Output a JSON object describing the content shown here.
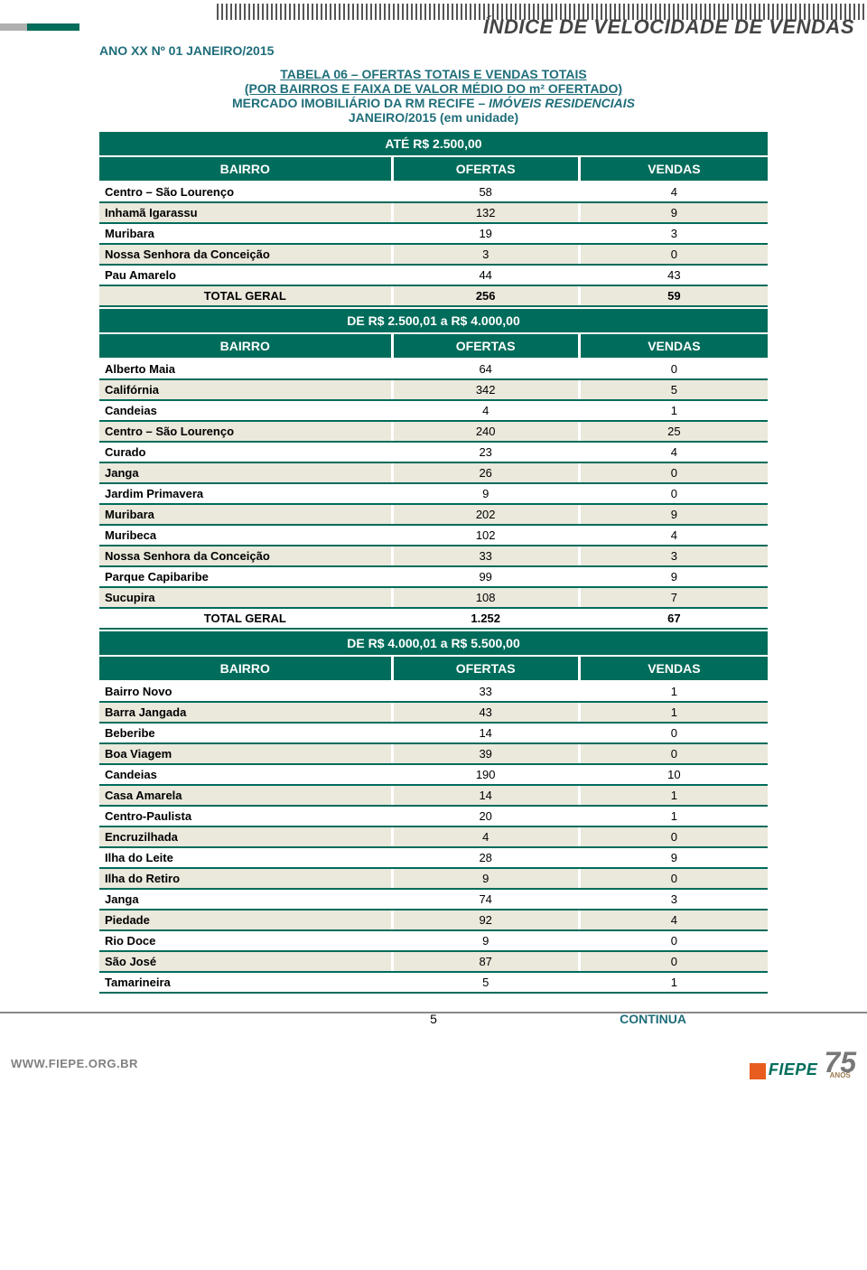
{
  "colors": {
    "teal": "#006c5b",
    "label": "#1f6e7a",
    "row_alt": "#ebe8dc",
    "border": "#006c5b",
    "gray": "#808080",
    "orange": "#e85c1f"
  },
  "header": {
    "index_title": "ÍNDICE DE VELOCIDADE DE VENDAS",
    "page_label": "ANO XX Nº 01 JANEIRO/2015"
  },
  "title_block": {
    "line1": "TABELA 06 – OFERTAS TOTAIS E VENDAS TOTAIS",
    "line2": "(POR BAIRROS E FAIXA DE VALOR MÉDIO DO m² OFERTADO)",
    "line3_a": "MERCADO IMOBILIÁRIO DA RM RECIFE – ",
    "line3_b": "IMÓVEIS RESIDENCIAIS",
    "line4": "JANEIRO/2015 (em unidade)"
  },
  "col_headers": {
    "bairro": "BAIRRO",
    "ofertas": "OFERTAS",
    "vendas": "VENDAS"
  },
  "sections": [
    {
      "band": "ATÉ R$ 2.500,00",
      "rows": [
        {
          "bairro": "Centro – São Lourenço",
          "ofertas": "58",
          "vendas": "4"
        },
        {
          "bairro": "Inhamã Igarassu",
          "ofertas": "132",
          "vendas": "9"
        },
        {
          "bairro": "Muribara",
          "ofertas": "19",
          "vendas": "3"
        },
        {
          "bairro": "Nossa Senhora da Conceição",
          "ofertas": "3",
          "vendas": "0"
        },
        {
          "bairro": "Pau Amarelo",
          "ofertas": "44",
          "vendas": "43"
        }
      ],
      "total": {
        "label": "TOTAL GERAL",
        "ofertas": "256",
        "vendas": "59"
      }
    },
    {
      "band": "DE R$ 2.500,01 a R$ 4.000,00",
      "rows": [
        {
          "bairro": "Alberto Maia",
          "ofertas": "64",
          "vendas": "0"
        },
        {
          "bairro": "Califórnia",
          "ofertas": "342",
          "vendas": "5"
        },
        {
          "bairro": "Candeias",
          "ofertas": "4",
          "vendas": "1"
        },
        {
          "bairro": "Centro – São Lourenço",
          "ofertas": "240",
          "vendas": "25"
        },
        {
          "bairro": "Curado",
          "ofertas": "23",
          "vendas": "4"
        },
        {
          "bairro": "Janga",
          "ofertas": "26",
          "vendas": "0"
        },
        {
          "bairro": "Jardim Primavera",
          "ofertas": "9",
          "vendas": "0"
        },
        {
          "bairro": "Muribara",
          "ofertas": "202",
          "vendas": "9"
        },
        {
          "bairro": "Muribeca",
          "ofertas": "102",
          "vendas": "4"
        },
        {
          "bairro": "Nossa Senhora da Conceição",
          "ofertas": "33",
          "vendas": "3"
        },
        {
          "bairro": "Parque Capibaribe",
          "ofertas": "99",
          "vendas": "9"
        },
        {
          "bairro": "Sucupira",
          "ofertas": "108",
          "vendas": "7"
        }
      ],
      "total": {
        "label": "TOTAL GERAL",
        "ofertas": "1.252",
        "vendas": "67"
      }
    },
    {
      "band": "DE R$ 4.000,01 a R$ 5.500,00",
      "rows": [
        {
          "bairro": "Bairro Novo",
          "ofertas": "33",
          "vendas": "1"
        },
        {
          "bairro": "Barra Jangada",
          "ofertas": "43",
          "vendas": "1"
        },
        {
          "bairro": "Beberibe",
          "ofertas": "14",
          "vendas": "0"
        },
        {
          "bairro": "Boa Viagem",
          "ofertas": "39",
          "vendas": "0"
        },
        {
          "bairro": "Candeias",
          "ofertas": "190",
          "vendas": "10"
        },
        {
          "bairro": "Casa Amarela",
          "ofertas": "14",
          "vendas": "1"
        },
        {
          "bairro": "Centro-Paulista",
          "ofertas": "20",
          "vendas": "1"
        },
        {
          "bairro": "Encruzilhada",
          "ofertas": "4",
          "vendas": "0"
        },
        {
          "bairro": "Ilha do Leite",
          "ofertas": "28",
          "vendas": "9"
        },
        {
          "bairro": "Ilha do Retiro",
          "ofertas": "9",
          "vendas": "0"
        },
        {
          "bairro": "Janga",
          "ofertas": "74",
          "vendas": "3"
        },
        {
          "bairro": "Piedade",
          "ofertas": "92",
          "vendas": "4"
        },
        {
          "bairro": "Rio Doce",
          "ofertas": "9",
          "vendas": "0"
        },
        {
          "bairro": "São José",
          "ofertas": "87",
          "vendas": "0"
        },
        {
          "bairro": "Tamarineira",
          "ofertas": "5",
          "vendas": "1"
        }
      ],
      "total": null
    }
  ],
  "footer": {
    "page_number": "5",
    "continua": "CONTINUA",
    "site": "WWW.FIEPE.ORG.BR",
    "logo_text": "FIEPE",
    "logo_years": "75",
    "logo_label": "ANOS"
  }
}
